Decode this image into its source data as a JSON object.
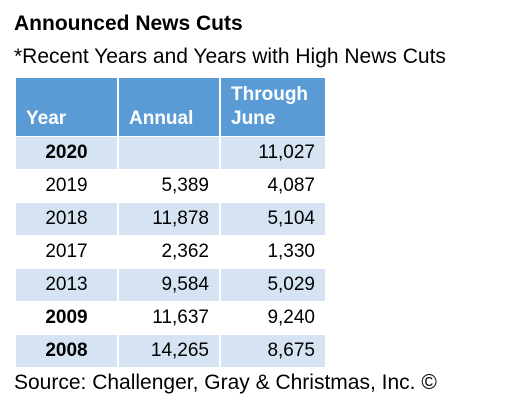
{
  "title": "Announced News Cuts",
  "subtitle": "*Recent Years and Years with High News Cuts",
  "table": {
    "headers": [
      "Year",
      "Annual",
      "Through June"
    ],
    "rows": [
      {
        "year": "2020",
        "annual": "",
        "through_june": "11,027",
        "bold": true
      },
      {
        "year": "2019",
        "annual": "5,389",
        "through_june": "4,087",
        "bold": false
      },
      {
        "year": "2018",
        "annual": "11,878",
        "through_june": "5,104",
        "bold": false
      },
      {
        "year": "2017",
        "annual": "2,362",
        "through_june": "1,330",
        "bold": false
      },
      {
        "year": "2013",
        "annual": "9,584",
        "through_june": "5,029",
        "bold": false
      },
      {
        "year": "2009",
        "annual": "11,637",
        "through_june": "9,240",
        "bold": true
      },
      {
        "year": "2008",
        "annual": "14,265",
        "through_june": "8,675",
        "bold": true
      }
    ]
  },
  "source": "Source: Challenger, Gray & Christmas, Inc. ©",
  "colors": {
    "header_bg": "#5b9bd5",
    "header_text": "#ffffff",
    "band_row": "#d6e3f3"
  }
}
